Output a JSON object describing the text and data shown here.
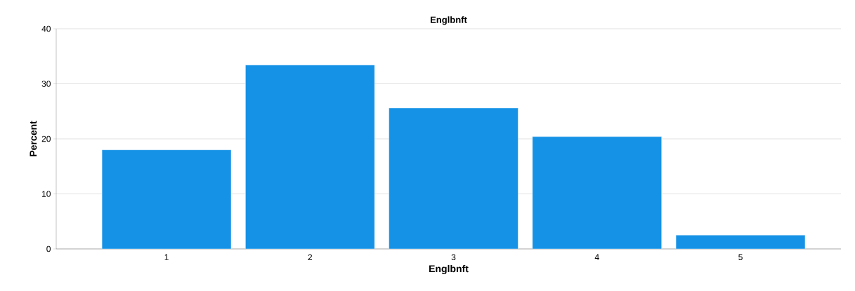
{
  "chart_data": {
    "type": "bar",
    "title": "Englbnft",
    "xlabel": "Englbnft",
    "ylabel": "Percent",
    "categories": [
      "1",
      "2",
      "3",
      "4",
      "5"
    ],
    "values": [
      18.0,
      33.4,
      25.6,
      20.4,
      2.5
    ],
    "color": "#1592e6",
    "ylim": [
      0,
      40
    ],
    "yticks": [
      0,
      10,
      20,
      30,
      40
    ],
    "grid": "y"
  }
}
